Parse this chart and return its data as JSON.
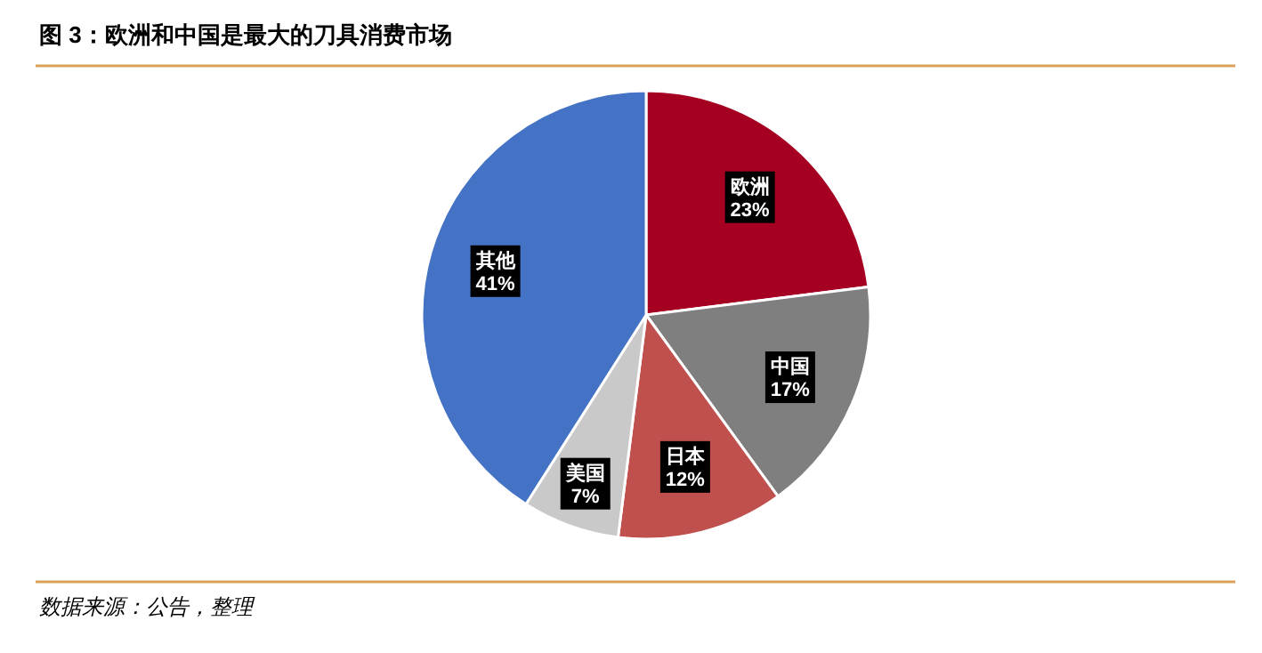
{
  "chart_data": {
    "type": "pie",
    "title": "图 3：欧洲和中国是最大的刀具消费市场",
    "categories": [
      "欧洲",
      "中国",
      "日本",
      "美国",
      "其他"
    ],
    "values": [
      23,
      17,
      12,
      7,
      41
    ],
    "colors": [
      "#a50021",
      "#7f7f7f",
      "#c0504d",
      "#c9c9c9",
      "#4472c4"
    ],
    "value_labels": [
      "23%",
      "17%",
      "12%",
      "7%",
      "41%"
    ],
    "annotations": [
      "数据来源：公告，整理"
    ]
  }
}
